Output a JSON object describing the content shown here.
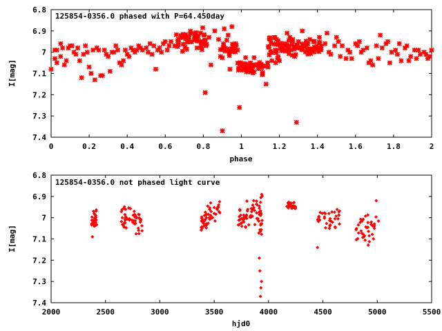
{
  "chart_data": [
    {
      "type": "scatter",
      "title": "125854-0356.0 phased with P=64.450day",
      "xlabel": "phase",
      "ylabel": "I[mag]",
      "xlim": [
        0,
        2
      ],
      "ylim": [
        7.4,
        6.8
      ],
      "y_inverted": true,
      "grid": false,
      "xticks": [
        "0",
        "0.2",
        "0.4",
        "0.6",
        "0.8",
        "1",
        "1.2",
        "1.4",
        "1.6",
        "1.8",
        "2"
      ],
      "yticks": [
        "6.8",
        "6.9",
        "7",
        "7.1",
        "7.2",
        "7.3",
        "7.4"
      ],
      "color": "#ff0000",
      "marker": "star",
      "series": [
        {
          "x": [
            0.0,
            0.02,
            0.03,
            0.05,
            0.06,
            0.08,
            0.1,
            0.12,
            0.14,
            0.16,
            0.17,
            0.19,
            0.2,
            0.22,
            0.23,
            0.24,
            0.26,
            0.28,
            0.29,
            0.31,
            0.33,
            0.35,
            0.37,
            0.39,
            0.4,
            0.42,
            0.44,
            0.46,
            0.48,
            0.5,
            0.52,
            0.54,
            0.55,
            0.57,
            0.59,
            0.61,
            0.63,
            0.65,
            0.02,
            0.05,
            0.09,
            0.13,
            0.18,
            0.21,
            0.25,
            0.3,
            0.34,
            0.38,
            0.43,
            0.47,
            0.51,
            0.56,
            0.6,
            0.03,
            0.07,
            0.11,
            0.15,
            0.27,
            0.32,
            0.36,
            0.41,
            0.45,
            0.53,
            0.58,
            0.62,
            0.81,
            0.9,
            0.99,
            1.13,
            1.29,
            1.2,
            1.24,
            1.32,
            1.36,
            1.41,
            1.44,
            1.47,
            1.5,
            1.53,
            1.56,
            1.58,
            1.61,
            1.63,
            1.66,
            1.69,
            1.71,
            1.74,
            1.76,
            1.79,
            1.81,
            1.84,
            1.86,
            1.89,
            1.91,
            1.94,
            1.96,
            1.98,
            2.0,
            1.45,
            1.49,
            1.52,
            1.55,
            1.6,
            1.64,
            1.68,
            1.72,
            1.77,
            1.82,
            1.87,
            1.92,
            1.97,
            1.46,
            1.51,
            1.57,
            1.62,
            1.67,
            1.73,
            1.78,
            1.83,
            1.88,
            1.93,
            1.99,
            0.83,
            0.86,
            0.88,
            0.91,
            0.93,
            0.95,
            0.97,
            1.14,
            1.16,
            1.18,
            1.21,
            1.23,
            1.25,
            1.27,
            1.3,
            1.33,
            1.35,
            1.38,
            1.4,
            1.42,
            1.28,
            1.26,
            1.19,
            0.84,
            0.89,
            0.94
          ],
          "y": [
            7.08,
            6.99,
            7.05,
            7.02,
            6.98,
            7.04,
            6.97,
            7.0,
            6.98,
            7.12,
            7.01,
            7.0,
            7.07,
            6.99,
            7.13,
            6.98,
            7.11,
            6.99,
            7.01,
            7.09,
            7.0,
            6.99,
            7.06,
            6.99,
            7.01,
            6.98,
            7.0,
            6.97,
            6.99,
            6.98,
            6.96,
            6.97,
            7.08,
            6.98,
            6.96,
            6.99,
            6.95,
            6.97,
            7.03,
            6.96,
            6.98,
            7.01,
            6.97,
            7.1,
            6.99,
            7.02,
            6.97,
            7.04,
            6.99,
            6.98,
            7.0,
            6.99,
            6.95,
            6.99,
            7.06,
            6.97,
            7.04,
            7.11,
            7.0,
            7.05,
            7.02,
            6.99,
            7.01,
            7.0,
            6.97,
            7.19,
            7.37,
            7.26,
            7.15,
            7.33,
            7.04,
            6.91,
            6.9,
            6.94,
            6.93,
            6.96,
            7.01,
            6.93,
            6.97,
            6.99,
            7.03,
            6.97,
            7.0,
            6.98,
            7.06,
            6.97,
            6.98,
            6.96,
            7.0,
            6.99,
            7.04,
            6.98,
            7.02,
            6.99,
            7.01,
            7.0,
            7.03,
            6.99,
            6.91,
            6.97,
            7.02,
            7.03,
            6.96,
            6.99,
            7.04,
            7.03,
            6.95,
            7.01,
            6.97,
            7.03,
            7.01,
            7.0,
            6.95,
            7.0,
            6.95,
            7.05,
            6.92,
            7.05,
            6.96,
            7.04,
            6.99,
            7.02,
            6.93,
            6.9,
            6.94,
            6.89,
            6.92,
            6.88,
            6.96,
            7.07,
            7.04,
            7.05,
            6.98,
            6.96,
            6.97,
            6.94,
            6.95,
            6.97,
            6.96,
            6.95,
            6.98,
            6.97,
            7.02,
            6.99,
            7.03,
            7.06,
            7.02,
            7.08
          ],
          "dense_regions": [
            {
              "x_range": [
                0.65,
                0.82
              ],
              "y_range": [
                6.88,
                7.0
              ]
            },
            {
              "x_range": [
                0.89,
                0.98
              ],
              "y_range": [
                6.94,
                7.04
              ]
            },
            {
              "x_range": [
                0.98,
                1.14
              ],
              "y_range": [
                7.02,
                7.12
              ]
            },
            {
              "x_range": [
                1.14,
                1.26
              ],
              "y_range": [
                6.92,
                7.03
              ]
            },
            {
              "x_range": [
                1.26,
                1.42
              ],
              "y_range": [
                6.93,
                7.02
              ]
            }
          ]
        }
      ]
    },
    {
      "type": "scatter",
      "title": "125854-0356.0 not phased light curve",
      "xlabel": "hjd0",
      "ylabel": "I[mag]",
      "xlim": [
        2000,
        5500
      ],
      "ylim": [
        7.4,
        6.8
      ],
      "y_inverted": true,
      "grid": false,
      "xticks": [
        "2000",
        "2500",
        "3000",
        "3500",
        "4000",
        "4500",
        "5000",
        "5500"
      ],
      "yticks": [
        "6.8",
        "6.9",
        "7",
        "7.1",
        "7.2",
        "7.3",
        "7.4"
      ],
      "color": "#ff0000",
      "marker": "diamond",
      "series": [
        {
          "x": [
            3915,
            3920,
            3925,
            3930,
            3935,
            4450,
            2380,
            2390,
            2410,
            4180,
            4230,
            4990
          ],
          "y": [
            7.19,
            7.25,
            7.37,
            7.33,
            7.3,
            7.14,
            7.09,
            6.97,
            6.99,
            6.95,
            6.93,
            6.92
          ],
          "dense_regions": [
            {
              "x_range": [
                2370,
                2420
              ],
              "y_range": [
                6.96,
                7.06
              ]
            },
            {
              "x_range": [
                2640,
                2730
              ],
              "y_range": [
                6.92,
                7.07
              ]
            },
            {
              "x_range": [
                2740,
                2840
              ],
              "y_range": [
                6.94,
                7.09
              ]
            },
            {
              "x_range": [
                3380,
                3430
              ],
              "y_range": [
                6.97,
                7.07
              ]
            },
            {
              "x_range": [
                3430,
                3560
              ],
              "y_range": [
                6.92,
                7.04
              ]
            },
            {
              "x_range": [
                3720,
                3800
              ],
              "y_range": [
                6.95,
                7.05
              ]
            },
            {
              "x_range": [
                3800,
                3900
              ],
              "y_range": [
                6.9,
                7.04
              ]
            },
            {
              "x_range": [
                3900,
                3945
              ],
              "y_range": [
                6.87,
                7.14
              ]
            },
            {
              "x_range": [
                4160,
                4250
              ],
              "y_range": [
                6.92,
                6.97
              ]
            },
            {
              "x_range": [
                4450,
                4660
              ],
              "y_range": [
                6.94,
                7.06
              ]
            },
            {
              "x_range": [
                4800,
                5020
              ],
              "y_range": [
                6.96,
                7.14
              ]
            }
          ]
        }
      ]
    }
  ]
}
